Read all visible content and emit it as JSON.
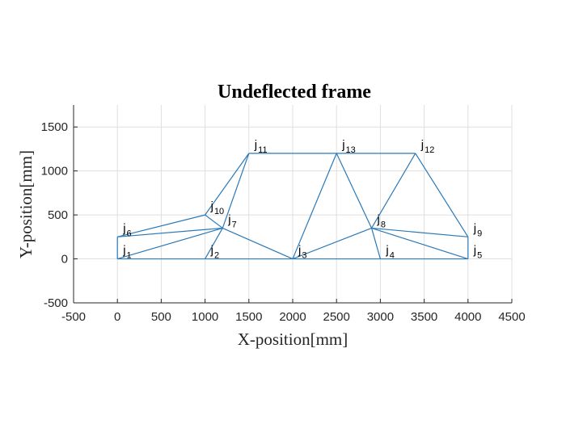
{
  "chart_data": {
    "type": "line",
    "title": "Undeflected frame",
    "xlabel": "X-position[mm]",
    "ylabel": "Y-position[mm]",
    "xlim": [
      -500,
      4500
    ],
    "ylim": [
      -500,
      1750
    ],
    "xticks": [
      -500,
      0,
      500,
      1000,
      1500,
      2000,
      2500,
      3000,
      3500,
      4000,
      4500
    ],
    "yticks": [
      -500,
      0,
      500,
      1000,
      1500
    ],
    "grid": true,
    "series_color": "#2a79b8",
    "joints": [
      {
        "id": "1",
        "base": "j",
        "sub": "1",
        "x": 0,
        "y": 0
      },
      {
        "id": "2",
        "base": "j",
        "sub": "2",
        "x": 1000,
        "y": 0
      },
      {
        "id": "3",
        "base": "j",
        "sub": "3",
        "x": 2000,
        "y": 0
      },
      {
        "id": "4",
        "base": "j",
        "sub": "4",
        "x": 3000,
        "y": 0
      },
      {
        "id": "5",
        "base": "j",
        "sub": "5",
        "x": 4000,
        "y": 0
      },
      {
        "id": "6",
        "base": "j",
        "sub": "6",
        "x": 0,
        "y": 250
      },
      {
        "id": "7",
        "base": "j",
        "sub": "7",
        "x": 1200,
        "y": 350
      },
      {
        "id": "8",
        "base": "j",
        "sub": "8",
        "x": 2900,
        "y": 350
      },
      {
        "id": "9",
        "base": "j",
        "sub": "9",
        "x": 4000,
        "y": 250
      },
      {
        "id": "10",
        "base": "j",
        "sub": "10",
        "x": 1000,
        "y": 500
      },
      {
        "id": "11",
        "base": "j",
        "sub": "11",
        "x": 1500,
        "y": 1200
      },
      {
        "id": "12",
        "base": "j",
        "sub": "12",
        "x": 3400,
        "y": 1200
      },
      {
        "id": "13",
        "base": "j",
        "sub": "13",
        "x": 2500,
        "y": 1200
      }
    ],
    "members": [
      [
        "1",
        "2"
      ],
      [
        "2",
        "3"
      ],
      [
        "3",
        "4"
      ],
      [
        "4",
        "5"
      ],
      [
        "1",
        "6"
      ],
      [
        "5",
        "9"
      ],
      [
        "6",
        "10"
      ],
      [
        "6",
        "7"
      ],
      [
        "1",
        "7"
      ],
      [
        "7",
        "10"
      ],
      [
        "2",
        "7"
      ],
      [
        "10",
        "11"
      ],
      [
        "7",
        "11"
      ],
      [
        "7",
        "3"
      ],
      [
        "11",
        "13"
      ],
      [
        "13",
        "12"
      ],
      [
        "3",
        "13"
      ],
      [
        "13",
        "8"
      ],
      [
        "3",
        "8"
      ],
      [
        "8",
        "4"
      ],
      [
        "8",
        "12"
      ],
      [
        "8",
        "9"
      ],
      [
        "8",
        "5"
      ],
      [
        "12",
        "9"
      ]
    ]
  }
}
